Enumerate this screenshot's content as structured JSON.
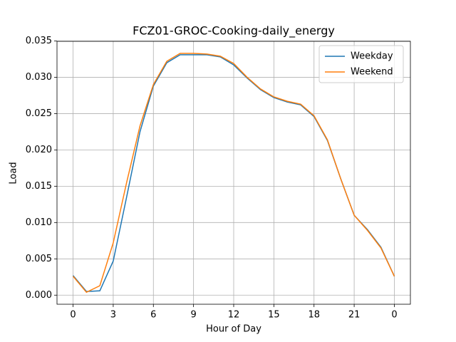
{
  "chart_data": {
    "type": "line",
    "title": "FCZ01-GROC-Cooking-daily_energy",
    "x_label": "Hour of Day",
    "y_label": "Load",
    "x": [
      0,
      1,
      2,
      3,
      4,
      5,
      6,
      7,
      8,
      9,
      10,
      11,
      12,
      13,
      14,
      15,
      16,
      17,
      18,
      19,
      20,
      21,
      22,
      23,
      24
    ],
    "series": [
      {
        "name": "Weekday",
        "color": "#1f77b4",
        "values": [
          0.0027,
          0.0005,
          0.0006,
          0.0047,
          0.0135,
          0.0225,
          0.0288,
          0.032,
          0.0331,
          0.0331,
          0.0331,
          0.0328,
          0.0317,
          0.0299,
          0.0283,
          0.0272,
          0.0266,
          0.0262,
          0.0246,
          0.0213,
          0.016,
          0.011,
          0.009,
          0.0066,
          0.0026
        ]
      },
      {
        "name": "Weekend",
        "color": "#ff7f0e",
        "values": [
          0.0026,
          0.0004,
          0.0013,
          0.0072,
          0.0155,
          0.0233,
          0.029,
          0.0322,
          0.0333,
          0.0333,
          0.0332,
          0.0329,
          0.0319,
          0.03,
          0.0284,
          0.0273,
          0.0267,
          0.0263,
          0.0247,
          0.0214,
          0.016,
          0.011,
          0.0089,
          0.0065,
          0.0026
        ]
      }
    ],
    "xlim": [
      -1.2,
      25.2
    ],
    "ylim": [
      -0.00125,
      0.03495
    ],
    "xticks": [
      0,
      3,
      6,
      9,
      12,
      15,
      18,
      21,
      {
        "value": 24,
        "label": "0"
      }
    ],
    "yticks": [
      {
        "value": 0,
        "label": "0.000"
      },
      {
        "value": 0.005,
        "label": "0.005"
      },
      {
        "value": 0.01,
        "label": "0.010"
      },
      {
        "value": 0.015,
        "label": "0.015"
      },
      {
        "value": 0.02,
        "label": "0.020"
      },
      {
        "value": 0.025,
        "label": "0.025"
      },
      {
        "value": 0.03,
        "label": "0.030"
      },
      {
        "value": 0.035,
        "label": "0.035"
      }
    ],
    "grid": true,
    "legend": "upper-right"
  }
}
